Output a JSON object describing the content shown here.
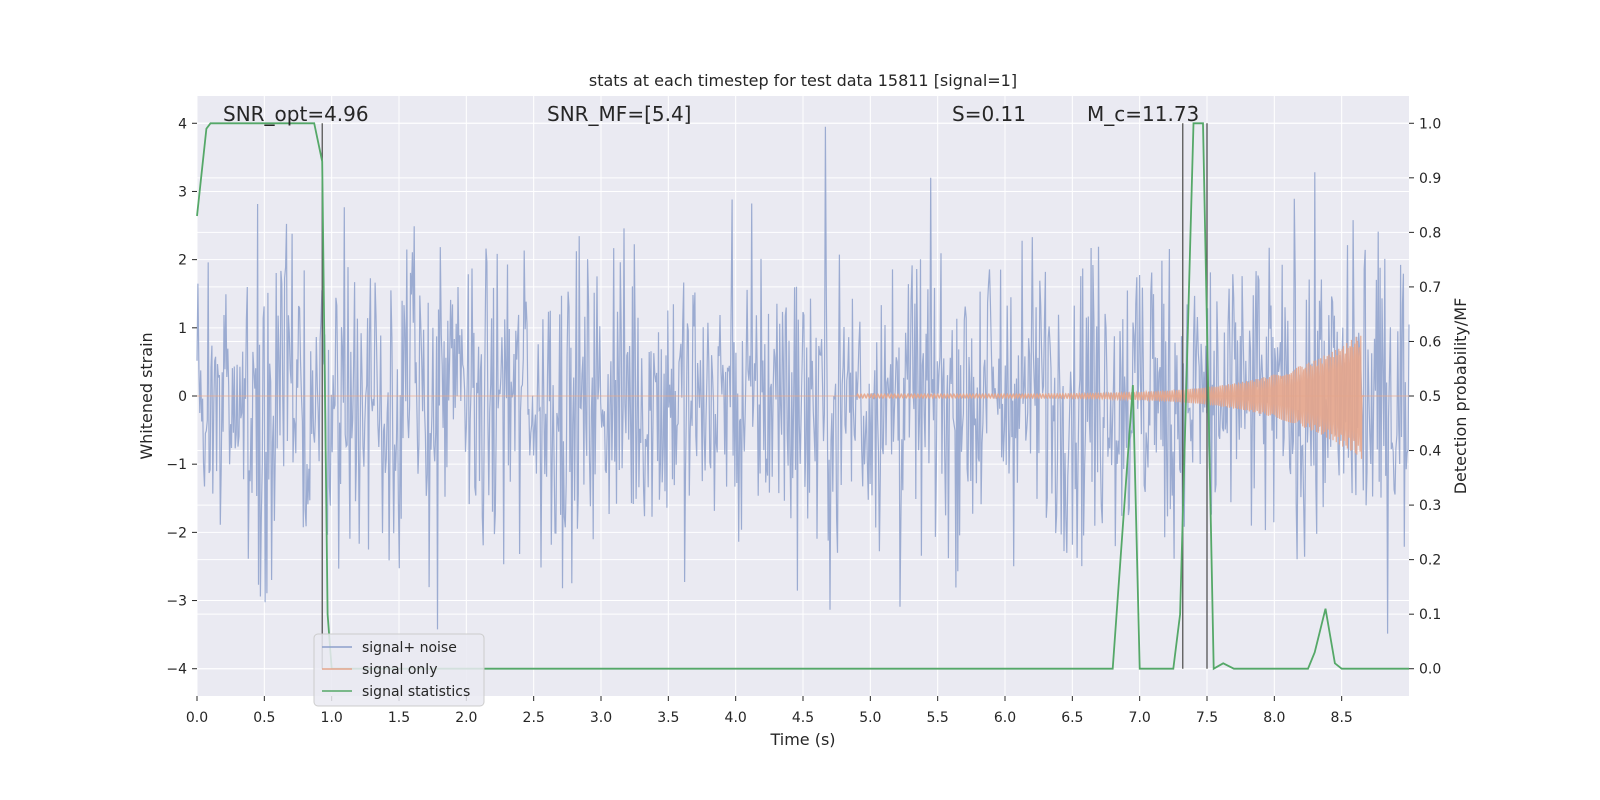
{
  "chart_data": {
    "type": "line",
    "title": "stats at each timestep for test data 15811 [signal=1]",
    "xlabel": "Time (s)",
    "ylabel": "Whitened strain",
    "ylabel_right": "Detection probability/MF",
    "xlim": [
      0.0,
      9.0
    ],
    "ylim": [
      -4.4,
      4.4
    ],
    "ylim_right": [
      -0.05,
      1.05
    ],
    "x_ticks": [
      0.0,
      0.5,
      1.0,
      1.5,
      2.0,
      2.5,
      3.0,
      3.5,
      4.0,
      4.5,
      5.0,
      5.5,
      6.0,
      6.5,
      7.0,
      7.5,
      8.0,
      8.5
    ],
    "x_tick_labels": [
      "0.0",
      "0.5",
      "1.0",
      "1.5",
      "2.0",
      "2.5",
      "3.0",
      "3.5",
      "4.0",
      "4.5",
      "5.0",
      "5.5",
      "6.0",
      "6.5",
      "7.0",
      "7.5",
      "8.0",
      "8.5"
    ],
    "y_ticks": [
      4,
      3,
      2,
      1,
      0,
      -1,
      -2,
      -3,
      -4
    ],
    "y_tick_labels": [
      "4",
      "3",
      "2",
      "1",
      "0",
      "−1",
      "−2",
      "−3",
      "−4"
    ],
    "y_right_ticks": [
      1.0,
      0.9,
      0.8,
      0.7,
      0.6,
      0.5,
      0.4,
      0.3,
      0.2,
      0.1,
      0.0
    ],
    "y_right_tick_labels": [
      "1.0",
      "0.9",
      "0.8",
      "0.7",
      "0.6",
      "0.5",
      "0.4",
      "0.3",
      "0.2",
      "0.1",
      "0.0"
    ],
    "grid": true,
    "annotations": [
      {
        "text": "SNR_opt=4.96",
        "x": 0.2,
        "y": 4.0
      },
      {
        "text": "SNR_MF=[5.4]",
        "x": 2.6,
        "y": 4.0
      },
      {
        "text": "S=0.11",
        "x": 5.6,
        "y": 4.0
      },
      {
        "text": "M_c=11.73",
        "x": 6.6,
        "y": 4.0
      }
    ],
    "vertical_lines": [
      0.93,
      7.32,
      7.5
    ],
    "legend": {
      "placement": "lower-left",
      "entries": [
        "signal+ noise",
        "signal only",
        "signal statistics"
      ]
    },
    "series": [
      {
        "name": "signal+ noise",
        "axis": "left",
        "color": "#8da0cb",
        "description_range": [
          -4.0,
          4.0
        ],
        "x_range": [
          0.0,
          9.0
        ]
      },
      {
        "name": "signal only",
        "axis": "left",
        "color": "#e5a58b",
        "x_range": [
          4.9,
          8.65
        ],
        "peak_amplitude": 0.9
      },
      {
        "name": "signal statistics",
        "axis": "right",
        "color": "#55a868",
        "x": [
          0.0,
          0.07,
          0.1,
          0.3,
          0.6,
          0.87,
          0.93,
          0.97,
          1.0,
          6.8,
          6.95,
          7.0,
          7.25,
          7.3,
          7.4,
          7.47,
          7.55,
          7.62,
          7.7,
          7.75,
          8.25,
          8.3,
          8.38,
          8.45,
          8.5,
          9.0
        ],
        "y": [
          0.83,
          0.99,
          1.0,
          1.0,
          1.0,
          1.0,
          0.93,
          0.1,
          0.0,
          0.0,
          0.52,
          0.0,
          0.0,
          0.1,
          1.0,
          1.0,
          0.0,
          0.01,
          0.0,
          0.0,
          0.0,
          0.03,
          0.11,
          0.01,
          0.0,
          0.0
        ]
      }
    ]
  }
}
